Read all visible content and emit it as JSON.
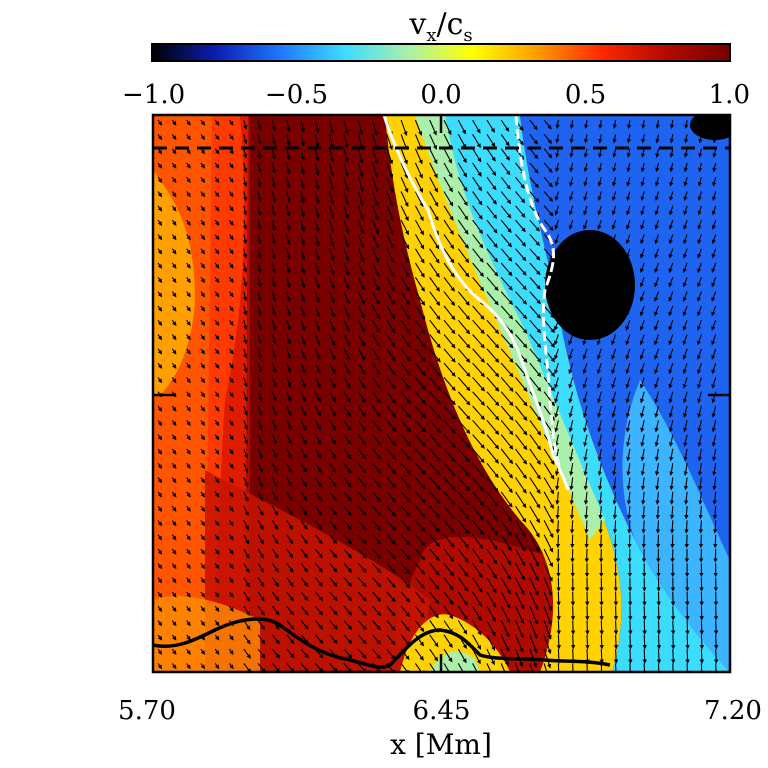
{
  "chart_data": {
    "type": "heatmap",
    "title": "",
    "colorbar": {
      "label": "v",
      "label_sub_1": "x",
      "label_mid": "/c",
      "label_sub_2": "s",
      "range": [
        -1.0,
        1.0
      ],
      "ticks": [
        "-1.0",
        "-0.5",
        "0.0",
        "0.5",
        "1.0"
      ],
      "colormap": [
        "#000000",
        "#0a1eb4",
        "#1e78ff",
        "#3cdcff",
        "#aaf0aa",
        "#ffff00",
        "#ff9b00",
        "#ff2800",
        "#b40a00",
        "#780000"
      ]
    },
    "xlabel": "x [Mm]",
    "ylabel": "",
    "xlim": [
      5.7,
      7.2
    ],
    "xticks": [
      "5.70",
      "6.45",
      "7.20"
    ],
    "grid": false,
    "overlays": [
      "velocity-vector-arrows",
      "white-dashed-contour",
      "black-solid-surface-curve",
      "horizontal-dashed-reference-line"
    ],
    "regions": [
      {
        "name": "left-column",
        "x": [
          5.7,
          6.05
        ],
        "v": 0.65
      },
      {
        "name": "central-band",
        "x": [
          6.05,
          6.45
        ],
        "v": 0.95
      },
      {
        "name": "transition",
        "x": [
          6.45,
          6.7
        ],
        "v": 0.0
      },
      {
        "name": "right-downflow",
        "x": [
          6.7,
          7.2
        ],
        "v": -0.75
      }
    ]
  }
}
